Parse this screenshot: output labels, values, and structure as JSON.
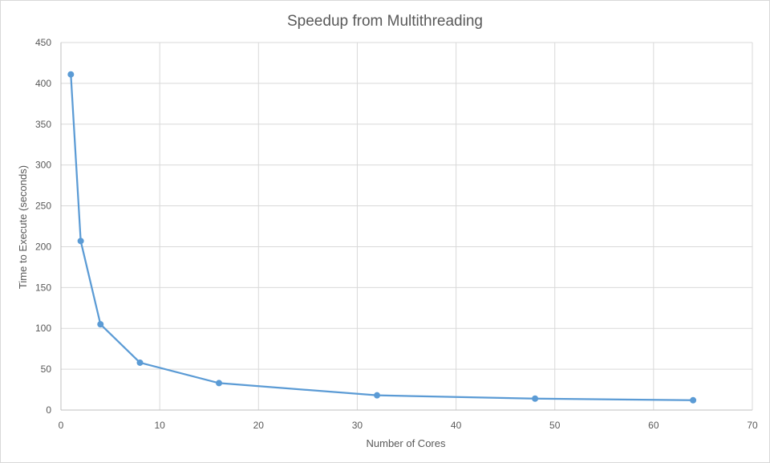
{
  "chart_data": {
    "type": "line",
    "title": "Speedup from Multithreading",
    "xlabel": "Number of Cores",
    "ylabel": "Time to Execute (seconds)",
    "xlim": [
      0,
      70
    ],
    "ylim": [
      0,
      450
    ],
    "x_ticks": [
      0,
      10,
      20,
      30,
      40,
      50,
      60,
      70
    ],
    "y_ticks": [
      0,
      50,
      100,
      150,
      200,
      250,
      300,
      350,
      400,
      450
    ],
    "grid": true,
    "series": [
      {
        "color": "#5b9bd5",
        "x": [
          1,
          2,
          4,
          8,
          16,
          32,
          48,
          64
        ],
        "y": [
          411,
          207,
          105,
          58,
          33,
          18,
          14,
          12
        ]
      }
    ]
  }
}
